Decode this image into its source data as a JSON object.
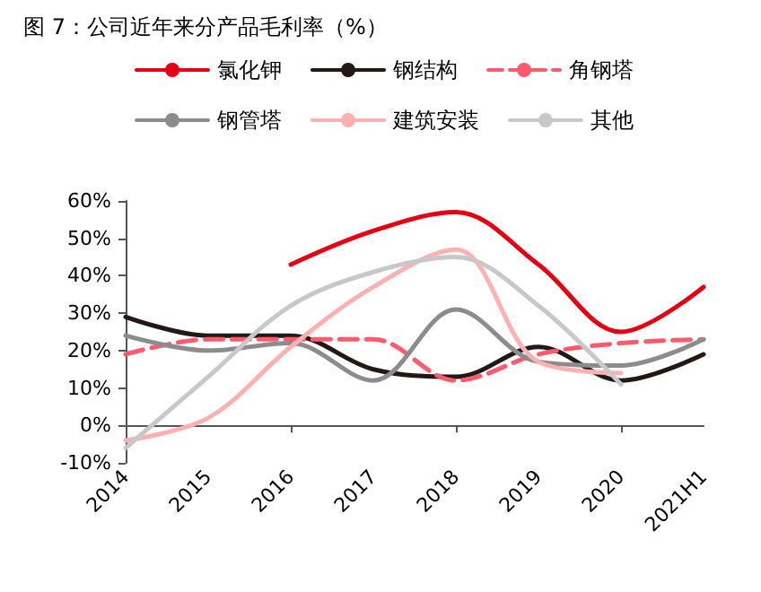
{
  "chart_data": {
    "type": "line",
    "title": "图 7：公司近年来分产品毛利率（%）",
    "categories": [
      "2014",
      "2015",
      "2016",
      "2017",
      "2018",
      "2019",
      "2020",
      "2021H1"
    ],
    "series": [
      {
        "name": "氯化钾",
        "color": "#e60012",
        "values": [
          null,
          null,
          43,
          52,
          57,
          43,
          25,
          37
        ]
      },
      {
        "name": "钢结构",
        "color": "#231815",
        "values": [
          29,
          24,
          24,
          15,
          13,
          21,
          12,
          19
        ]
      },
      {
        "name": "角钢塔",
        "color": "#ff5a6e",
        "line_style": "dashed",
        "values": [
          19,
          23,
          23,
          23,
          12,
          19,
          22,
          23
        ]
      },
      {
        "name": "钢管塔",
        "color": "#8c8c8c",
        "values": [
          24,
          20,
          22,
          12,
          31,
          17,
          16,
          23
        ]
      },
      {
        "name": "建筑安装",
        "color": "#ffb0b0",
        "values": [
          -4,
          2,
          21,
          37,
          47,
          17,
          14,
          null
        ]
      },
      {
        "name": "其他",
        "color": "#c8c8c8",
        "values": [
          -6,
          13,
          32,
          41,
          45,
          32,
          11,
          null
        ]
      }
    ],
    "ylim": [
      -10,
      60
    ],
    "yticks": [
      {
        "value": -10,
        "label": "-10%"
      },
      {
        "value": 0,
        "label": "0%"
      },
      {
        "value": 10,
        "label": "10%"
      },
      {
        "value": 20,
        "label": "20%"
      },
      {
        "value": 30,
        "label": "30%"
      },
      {
        "value": 40,
        "label": "40%"
      },
      {
        "value": 50,
        "label": "50%"
      },
      {
        "value": 60,
        "label": "60%"
      }
    ],
    "grid": false,
    "legend": "top",
    "marker": "none",
    "line_style": "solid"
  }
}
